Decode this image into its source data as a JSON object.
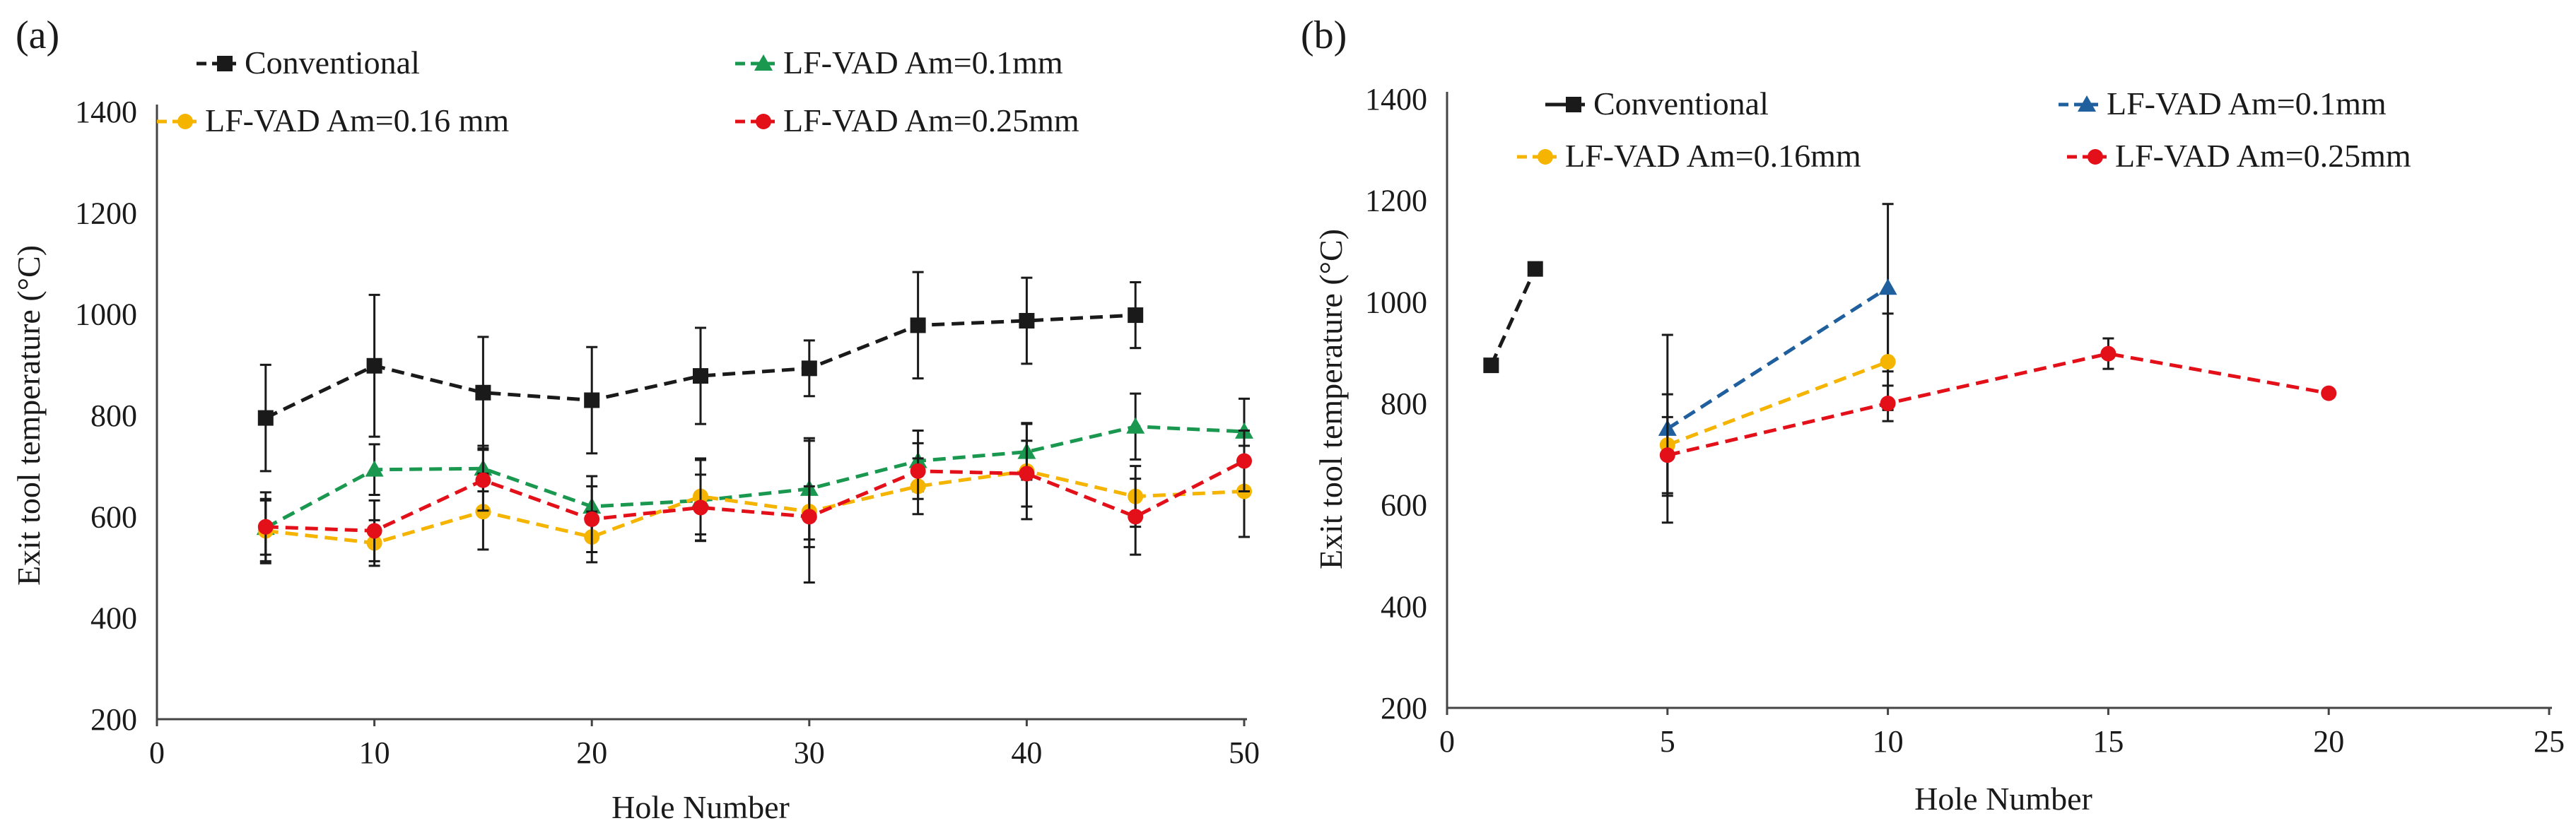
{
  "chart_data": [
    {
      "type": "line",
      "panel_label": "(a)",
      "title": "",
      "xlabel": "Hole Number",
      "ylabel": "Exit tool temperature (°C)",
      "xlim": [
        0,
        50
      ],
      "ylim": [
        200,
        1400
      ],
      "xticks": [
        0,
        10,
        20,
        30,
        40,
        50
      ],
      "yticks": [
        200,
        400,
        600,
        800,
        1000,
        1200,
        1400
      ],
      "grid": false,
      "legend_position": "top",
      "series": [
        {
          "name": "Conventional",
          "color": "#1a1a1a",
          "marker": "square",
          "x": [
            5,
            10,
            15,
            20,
            25,
            30,
            35,
            40,
            45
          ],
          "values": [
            795,
            898,
            845,
            830,
            878,
            893,
            978,
            987,
            998
          ],
          "err": [
            105,
            140,
            110,
            105,
            95,
            55,
            105,
            85,
            65
          ]
        },
        {
          "name": "LF-VAD Am=0.1mm",
          "color": "#1a9850",
          "marker": "triangle",
          "x": [
            5,
            10,
            15,
            20,
            25,
            30,
            35,
            40,
            45,
            50
          ],
          "values": [
            578,
            693,
            695,
            620,
            632,
            655,
            710,
            728,
            778,
            768
          ],
          "err": [
            70,
            50,
            45,
            60,
            80,
            100,
            60,
            55,
            65,
            65
          ]
        },
        {
          "name": "LF-VAD Am=0.16 mm",
          "color": "#f5b400",
          "marker": "circle",
          "x": [
            5,
            10,
            15,
            20,
            25,
            30,
            35,
            40,
            45,
            50
          ],
          "values": [
            572,
            548,
            610,
            560,
            640,
            610,
            660,
            690,
            640,
            650
          ],
          "err": [
            60,
            45,
            75,
            50,
            75,
            140,
            55,
            95,
            60,
            90
          ]
        },
        {
          "name": "LF-VAD Am=0.25mm",
          "color": "#e3101a",
          "marker": "circle",
          "x": [
            5,
            10,
            15,
            20,
            25,
            30,
            35,
            40,
            45,
            50
          ],
          "values": [
            580,
            572,
            672,
            595,
            618,
            600,
            690,
            685,
            600,
            710
          ],
          "err": [
            55,
            60,
            60,
            65,
            65,
            60,
            55,
            65,
            75,
            60
          ]
        }
      ]
    },
    {
      "type": "line",
      "panel_label": "(b)",
      "title": "",
      "xlabel": "Hole Number",
      "ylabel": "Exit tool temperature (°C)",
      "xlim": [
        0,
        25
      ],
      "ylim": [
        200,
        1400
      ],
      "xticks": [
        0,
        5,
        10,
        15,
        20,
        25
      ],
      "yticks": [
        200,
        400,
        600,
        800,
        1000,
        1200,
        1400
      ],
      "grid": false,
      "legend_position": "top",
      "series": [
        {
          "name": "Conventional",
          "color": "#1a1a1a",
          "marker": "square",
          "x": [
            1,
            2
          ],
          "values": [
            875,
            1065
          ],
          "err": [
            0,
            0
          ]
        },
        {
          "name": "LF-VAD Am=0.1mm",
          "color": "#1f5f9e",
          "marker": "triangle",
          "x": [
            5,
            10
          ],
          "values": [
            750,
            1028
          ],
          "err": [
            185,
            165
          ]
        },
        {
          "name": "LF-VAD Am=0.16mm",
          "color": "#f5b400",
          "marker": "circle",
          "x": [
            5,
            10
          ],
          "values": [
            718,
            882
          ],
          "err": [
            100,
            95
          ]
        },
        {
          "name": "LF-VAD Am=0.25mm",
          "color": "#e3101a",
          "marker": "circle",
          "x": [
            5,
            10,
            15,
            20
          ],
          "values": [
            698,
            800,
            898,
            820
          ],
          "err": [
            75,
            35,
            30,
            0
          ]
        }
      ]
    }
  ]
}
